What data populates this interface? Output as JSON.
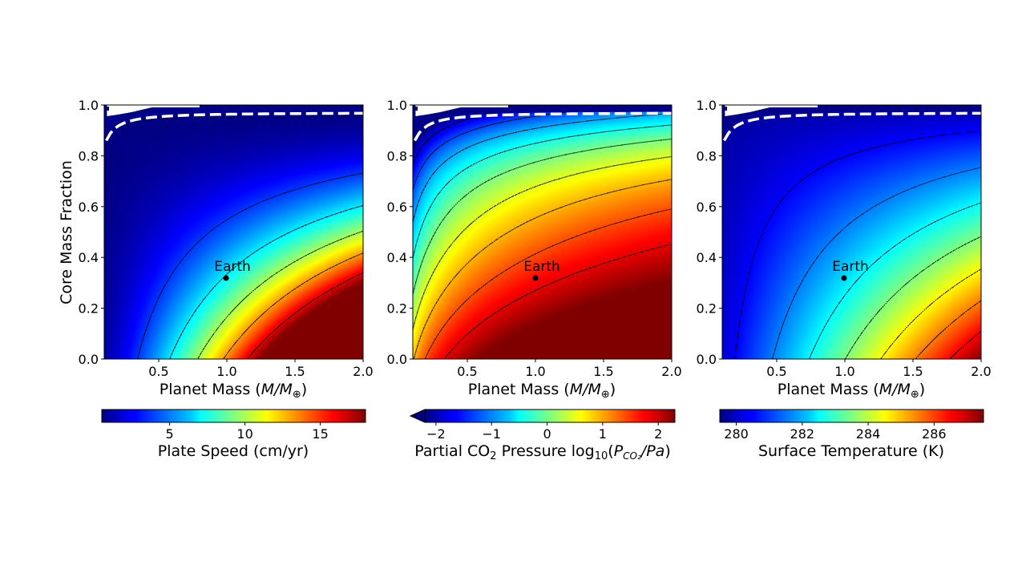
{
  "chart_data": [
    {
      "type": "heatmap",
      "xlabel_text": "Planet Mass (",
      "xlabel_var": "M/M",
      "xlabel_sub": "⊕",
      "xlabel_close": ")",
      "ylabel": "Core Mass Fraction",
      "xlim": [
        0.1,
        2.0
      ],
      "ylim": [
        0.0,
        1.0
      ],
      "x_ticks": [
        "0.5",
        "1.0",
        "1.5",
        "2.0"
      ],
      "y_ticks": [
        "0.0",
        "0.2",
        "0.4",
        "0.6",
        "0.8",
        "1.0"
      ],
      "colorbar": {
        "label": "Plate Speed (cm/yr)",
        "range": [
          0.5,
          18
        ],
        "ticks": [
          "5",
          "10",
          "15"
        ],
        "tick_values": [
          5,
          10,
          15
        ]
      },
      "annotation": {
        "text": "Earth",
        "x": 1.0,
        "y": 0.32
      },
      "field": "plate_speed"
    },
    {
      "type": "heatmap",
      "xlabel_text": "Planet Mass (",
      "xlabel_var": "M/M",
      "xlabel_sub": "⊕",
      "xlabel_close": ")",
      "xlim": [
        0.1,
        2.0
      ],
      "ylim": [
        0.0,
        1.0
      ],
      "x_ticks": [
        "0.5",
        "1.0",
        "1.5",
        "2.0"
      ],
      "y_ticks": [
        "0.0",
        "0.2",
        "0.4",
        "0.6",
        "0.8",
        "1.0"
      ],
      "colorbar": {
        "label_pre": "Partial CO",
        "label_sub": "2",
        "label_mid": " Pressure log",
        "label_sub2": "10",
        "label_open": "(",
        "label_var": "P",
        "label_var_sub": "CO₂",
        "label_var_post": "/Pa",
        "label_close": ")",
        "range": [
          -2.2,
          2.3
        ],
        "ticks": [
          "−2",
          "−1",
          "0",
          "1",
          "2"
        ],
        "tick_values": [
          -2,
          -1,
          0,
          1,
          2
        ],
        "extend": "min"
      },
      "annotation": {
        "text": "Earth",
        "x": 1.0,
        "y": 0.32
      },
      "field": "co2_pressure"
    },
    {
      "type": "heatmap",
      "xlabel_text": "Planet Mass (",
      "xlabel_var": "M/M",
      "xlabel_sub": "⊕",
      "xlabel_close": ")",
      "xlim": [
        0.1,
        2.0
      ],
      "ylim": [
        0.0,
        1.0
      ],
      "x_ticks": [
        "0.5",
        "1.0",
        "1.5",
        "2.0"
      ],
      "y_ticks": [
        "0.0",
        "0.2",
        "0.4",
        "0.6",
        "0.8",
        "1.0"
      ],
      "colorbar": {
        "label": "Surface Temperature (K)",
        "range": [
          279.5,
          287.5
        ],
        "ticks": [
          "280",
          "282",
          "284",
          "286"
        ],
        "tick_values": [
          280,
          282,
          284,
          286
        ]
      },
      "annotation": {
        "text": "Earth",
        "x": 1.0,
        "y": 0.32
      },
      "field": "surface_temperature"
    }
  ],
  "colors": {
    "colormap": "jet",
    "invalid_region": "#00008b",
    "boundary_line": "#ffffff",
    "contour": "#000000"
  }
}
